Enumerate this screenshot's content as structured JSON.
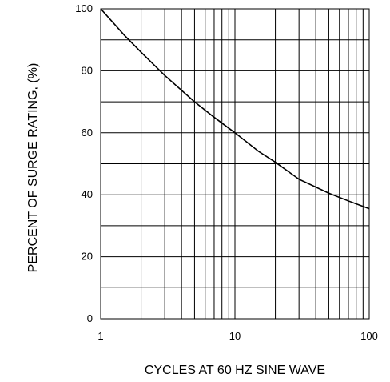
{
  "chart_data": {
    "type": "line",
    "title": "",
    "xlabel": "CYCLES AT 60 HZ SINE WAVE",
    "ylabel": "PERCENT OF SURGE RATING, (%)",
    "xscale": "log",
    "xlim": [
      1,
      100
    ],
    "ylim": [
      0,
      100
    ],
    "x_tick_labels": [
      "1",
      "10",
      "100"
    ],
    "y_tick_labels": [
      "0",
      "20",
      "40",
      "60",
      "80",
      "100"
    ],
    "grid": true,
    "series": [
      {
        "x": [
          1,
          1.5,
          2,
          3,
          5,
          7,
          10,
          15,
          20,
          30,
          50,
          70,
          100
        ],
        "y": [
          100,
          91.5,
          86,
          78.5,
          70,
          65,
          60,
          54,
          50.5,
          45,
          40.5,
          38,
          35.5
        ],
        "color": "#000000"
      }
    ]
  }
}
